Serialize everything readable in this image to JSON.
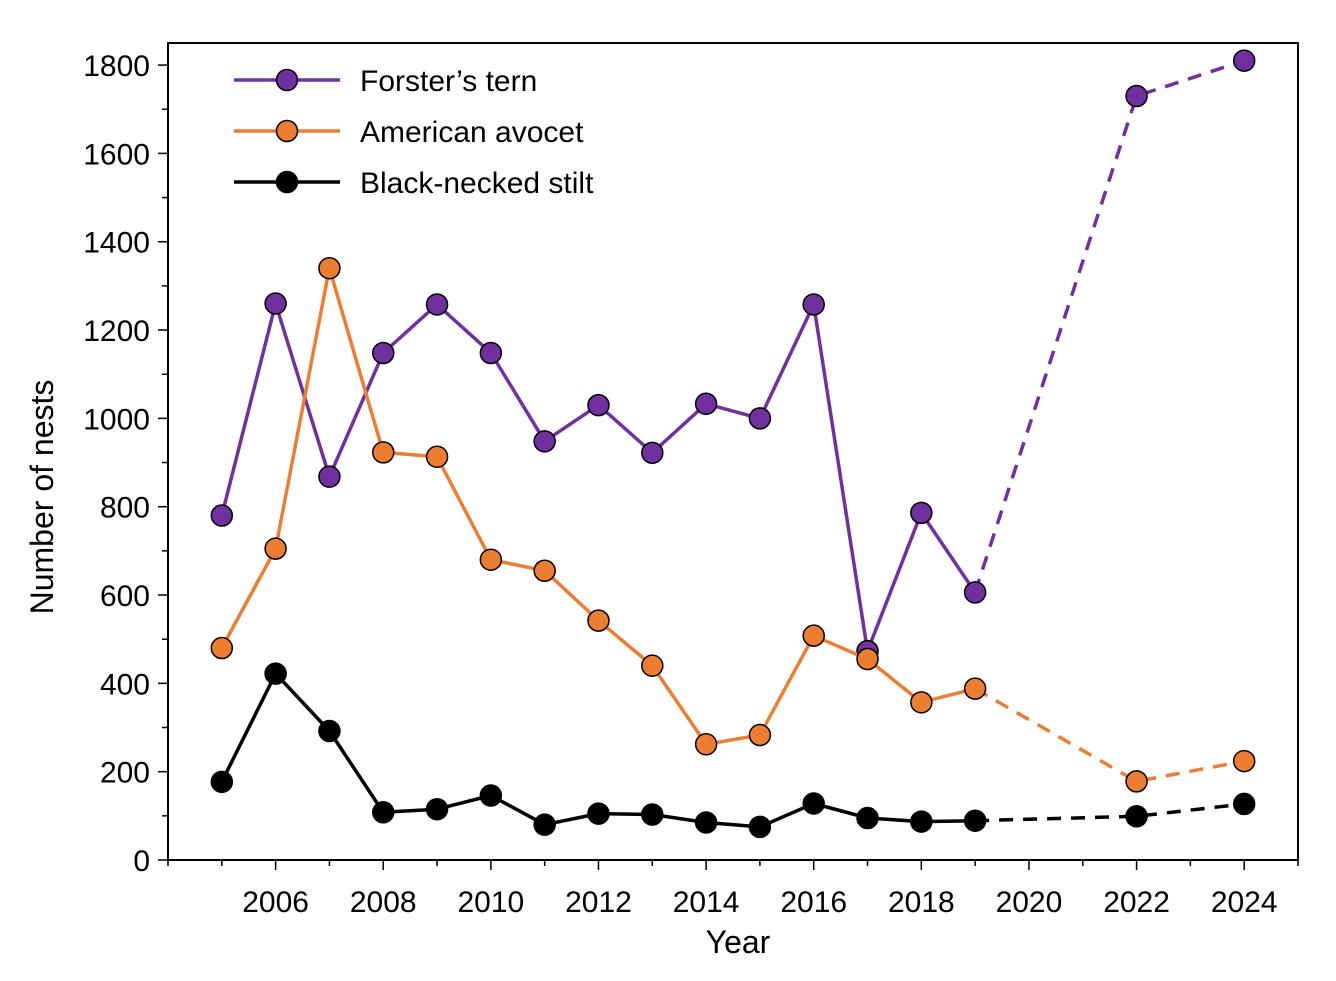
{
  "chart_data": {
    "type": "line",
    "xlabel": "Year",
    "ylabel": "Number of nests",
    "xlim": [
      2004,
      2025
    ],
    "ylim": [
      0,
      1850
    ],
    "x_ticks": [
      2006,
      2008,
      2010,
      2012,
      2014,
      2016,
      2018,
      2020,
      2022,
      2024
    ],
    "y_ticks": [
      0,
      200,
      400,
      600,
      800,
      1000,
      1200,
      1400,
      1600,
      1800
    ],
    "legend_position": "top-left",
    "grid": false,
    "series": [
      {
        "name": "Forster’s tern",
        "color": "#7030a0",
        "points": [
          [
            2005,
            780
          ],
          [
            2006,
            1260
          ],
          [
            2007,
            868
          ],
          [
            2008,
            1148
          ],
          [
            2009,
            1258
          ],
          [
            2010,
            1148
          ],
          [
            2011,
            948
          ],
          [
            2012,
            1030
          ],
          [
            2013,
            922
          ],
          [
            2014,
            1033
          ],
          [
            2015,
            1000
          ],
          [
            2016,
            1258
          ],
          [
            2017,
            473
          ],
          [
            2018,
            786
          ],
          [
            2019,
            606
          ]
        ],
        "dashed_points": [
          [
            2019,
            606
          ],
          [
            2022,
            1730
          ],
          [
            2024,
            1810
          ]
        ]
      },
      {
        "name": "American avocet",
        "color": "#ed7d31",
        "points": [
          [
            2005,
            480
          ],
          [
            2006,
            705
          ],
          [
            2007,
            1340
          ],
          [
            2008,
            923
          ],
          [
            2009,
            913
          ],
          [
            2010,
            680
          ],
          [
            2011,
            655
          ],
          [
            2012,
            542
          ],
          [
            2013,
            440
          ],
          [
            2014,
            262
          ],
          [
            2015,
            283
          ],
          [
            2016,
            508
          ],
          [
            2017,
            455
          ],
          [
            2018,
            357
          ],
          [
            2019,
            388
          ]
        ],
        "dashed_points": [
          [
            2019,
            388
          ],
          [
            2022,
            178
          ],
          [
            2024,
            224
          ]
        ]
      },
      {
        "name": "Black-necked stilt",
        "color": "#000000",
        "points": [
          [
            2005,
            177
          ],
          [
            2006,
            422
          ],
          [
            2007,
            292
          ],
          [
            2008,
            108
          ],
          [
            2009,
            115
          ],
          [
            2010,
            146
          ],
          [
            2011,
            80
          ],
          [
            2012,
            105
          ],
          [
            2013,
            103
          ],
          [
            2014,
            85
          ],
          [
            2015,
            75
          ],
          [
            2016,
            128
          ],
          [
            2017,
            95
          ],
          [
            2018,
            87
          ],
          [
            2019,
            89
          ]
        ],
        "dashed_points": [
          [
            2019,
            89
          ],
          [
            2022,
            99
          ],
          [
            2024,
            127
          ]
        ]
      }
    ]
  }
}
